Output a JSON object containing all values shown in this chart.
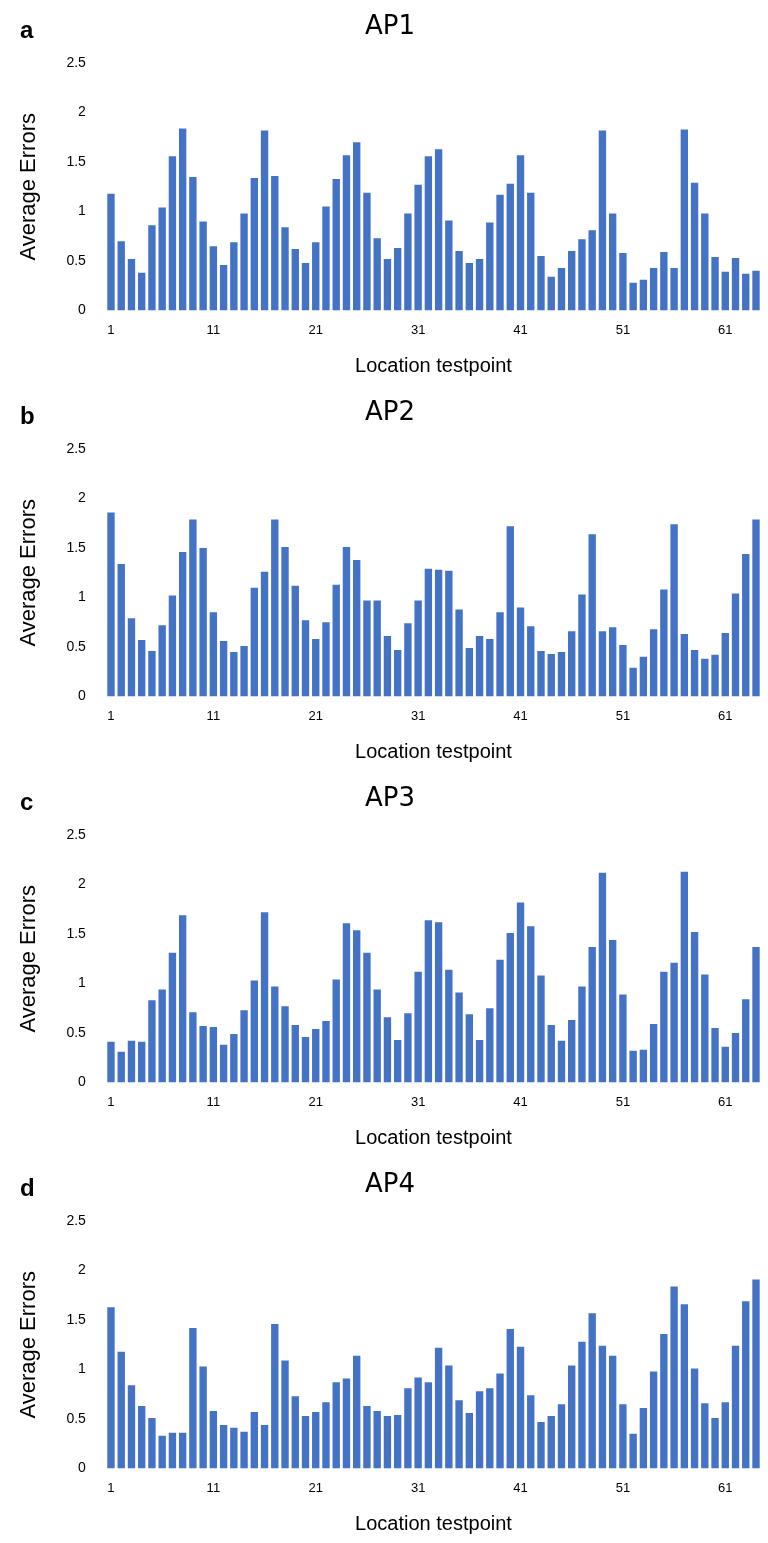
{
  "chart_data": [
    {
      "type": "bar",
      "title": "AP1",
      "annotations": [
        "a"
      ],
      "xlabel": "Location testpoint",
      "ylabel": "Average Errors",
      "ylim": [
        0,
        2.5
      ],
      "yticks": [
        0,
        0.5,
        1,
        1.5,
        2,
        2.5
      ],
      "grid": false,
      "legend": false,
      "color": "#4472c4",
      "categories": [
        "1",
        null,
        null,
        null,
        null,
        null,
        null,
        null,
        null,
        null,
        "11",
        null,
        null,
        null,
        null,
        null,
        null,
        null,
        null,
        null,
        "21",
        null,
        null,
        null,
        null,
        null,
        null,
        null,
        null,
        null,
        "31",
        null,
        null,
        null,
        null,
        null,
        null,
        null,
        null,
        null,
        "41",
        null,
        null,
        null,
        null,
        null,
        null,
        null,
        null,
        null,
        "51",
        null,
        null,
        null,
        null,
        null,
        null,
        null,
        null,
        null,
        "61",
        null,
        null,
        null
      ],
      "values": [
        1.18,
        0.7,
        0.52,
        0.38,
        0.86,
        1.04,
        1.56,
        1.84,
        1.35,
        0.9,
        0.65,
        0.46,
        0.69,
        0.98,
        1.34,
        1.82,
        1.36,
        0.84,
        0.62,
        0.48,
        0.69,
        1.05,
        1.33,
        1.57,
        1.7,
        1.19,
        0.73,
        0.52,
        0.63,
        0.98,
        1.27,
        1.56,
        1.63,
        0.91,
        0.6,
        0.48,
        0.52,
        0.89,
        1.17,
        1.28,
        1.57,
        1.19,
        0.55,
        0.34,
        0.43,
        0.6,
        0.72,
        0.81,
        1.82,
        0.98,
        0.58,
        0.28,
        0.31,
        0.43,
        0.59,
        0.43,
        1.83,
        1.29,
        0.98,
        0.54,
        0.39,
        0.53,
        0.37,
        0.4
      ]
    },
    {
      "type": "bar",
      "title": "AP2",
      "annotations": [
        "b"
      ],
      "xlabel": "Location testpoint",
      "ylabel": "Average Errors",
      "ylim": [
        0,
        2.5
      ],
      "yticks": [
        0,
        0.5,
        1,
        1.5,
        2,
        2.5
      ],
      "grid": false,
      "legend": false,
      "color": "#4472c4",
      "categories": [
        "1",
        null,
        null,
        null,
        null,
        null,
        null,
        null,
        null,
        null,
        "11",
        null,
        null,
        null,
        null,
        null,
        null,
        null,
        null,
        null,
        "21",
        null,
        null,
        null,
        null,
        null,
        null,
        null,
        null,
        null,
        "31",
        null,
        null,
        null,
        null,
        null,
        null,
        null,
        null,
        null,
        "41",
        null,
        null,
        null,
        null,
        null,
        null,
        null,
        null,
        null,
        "51",
        null,
        null,
        null,
        null,
        null,
        null,
        null,
        null,
        null,
        "61",
        null,
        null,
        null
      ],
      "values": [
        1.86,
        1.34,
        0.79,
        0.57,
        0.46,
        0.72,
        1.02,
        1.46,
        1.79,
        1.5,
        0.85,
        0.56,
        0.45,
        0.51,
        1.1,
        1.26,
        1.79,
        1.51,
        1.12,
        0.77,
        0.58,
        0.75,
        1.13,
        1.51,
        1.38,
        0.97,
        0.97,
        0.61,
        0.47,
        0.74,
        0.97,
        1.29,
        1.28,
        1.27,
        0.88,
        0.49,
        0.61,
        0.58,
        0.85,
        1.72,
        0.9,
        0.71,
        0.46,
        0.43,
        0.45,
        0.66,
        1.03,
        1.64,
        0.66,
        0.7,
        0.52,
        0.29,
        0.4,
        0.68,
        1.08,
        1.74,
        0.63,
        0.47,
        0.38,
        0.42,
        0.64,
        1.04,
        1.44,
        1.79
      ]
    },
    {
      "type": "bar",
      "title": "AP3",
      "annotations": [
        "c"
      ],
      "xlabel": "Location testpoint",
      "ylabel": "Average Errors",
      "ylim": [
        0,
        2.5
      ],
      "yticks": [
        0,
        0.5,
        1,
        1.5,
        2,
        2.5
      ],
      "grid": false,
      "legend": false,
      "color": "#4472c4",
      "categories": [
        "1",
        null,
        null,
        null,
        null,
        null,
        null,
        null,
        null,
        null,
        "11",
        null,
        null,
        null,
        null,
        null,
        null,
        null,
        null,
        null,
        "21",
        null,
        null,
        null,
        null,
        null,
        null,
        null,
        null,
        null,
        "31",
        null,
        null,
        null,
        null,
        null,
        null,
        null,
        null,
        null,
        "41",
        null,
        null,
        null,
        null,
        null,
        null,
        null,
        null,
        null,
        "51",
        null,
        null,
        null,
        null,
        null,
        null,
        null,
        null,
        null,
        "61",
        null,
        null,
        null
      ],
      "values": [
        0.41,
        0.31,
        0.42,
        0.41,
        0.83,
        0.94,
        1.31,
        1.69,
        0.71,
        0.57,
        0.56,
        0.38,
        0.49,
        0.73,
        1.03,
        1.72,
        0.97,
        0.77,
        0.58,
        0.46,
        0.54,
        0.62,
        1.04,
        1.61,
        1.54,
        1.31,
        0.94,
        0.66,
        0.43,
        0.7,
        1.12,
        1.64,
        1.62,
        1.14,
        0.91,
        0.69,
        0.43,
        0.75,
        1.24,
        1.51,
        1.82,
        1.58,
        1.08,
        0.58,
        0.42,
        0.63,
        0.97,
        1.37,
        2.12,
        1.44,
        0.89,
        0.32,
        0.33,
        0.59,
        1.12,
        1.21,
        2.13,
        1.52,
        1.09,
        0.55,
        0.36,
        0.5,
        0.84,
        1.37
      ]
    },
    {
      "type": "bar",
      "title": "AP4",
      "annotations": [
        "d"
      ],
      "xlabel": "Location testpoint",
      "ylabel": "Average Errors",
      "ylim": [
        0,
        2.5
      ],
      "yticks": [
        0,
        0.5,
        1,
        1.5,
        2,
        2.5
      ],
      "grid": false,
      "legend": false,
      "color": "#4472c4",
      "categories": [
        "1",
        null,
        null,
        null,
        null,
        null,
        null,
        null,
        null,
        null,
        "11",
        null,
        null,
        null,
        null,
        null,
        null,
        null,
        null,
        null,
        "21",
        null,
        null,
        null,
        null,
        null,
        null,
        null,
        null,
        null,
        "31",
        null,
        null,
        null,
        null,
        null,
        null,
        null,
        null,
        null,
        "41",
        null,
        null,
        null,
        null,
        null,
        null,
        null,
        null,
        null,
        "51",
        null,
        null,
        null,
        null,
        null,
        null,
        null,
        null,
        null,
        "61",
        null,
        null,
        null
      ],
      "values": [
        1.63,
        1.18,
        0.84,
        0.63,
        0.51,
        0.33,
        0.36,
        0.36,
        1.42,
        1.03,
        0.58,
        0.44,
        0.41,
        0.37,
        0.57,
        0.44,
        1.46,
        1.09,
        0.73,
        0.53,
        0.57,
        0.67,
        0.87,
        0.91,
        1.14,
        0.63,
        0.58,
        0.53,
        0.54,
        0.81,
        0.92,
        0.87,
        1.22,
        1.04,
        0.69,
        0.56,
        0.78,
        0.81,
        0.96,
        1.41,
        1.23,
        0.74,
        0.47,
        0.53,
        0.65,
        1.04,
        1.28,
        1.57,
        1.24,
        1.14,
        0.65,
        0.35,
        0.61,
        0.98,
        1.36,
        1.84,
        1.66,
        1.01,
        0.66,
        0.51,
        0.67,
        1.24,
        1.69,
        1.91
      ]
    }
  ]
}
